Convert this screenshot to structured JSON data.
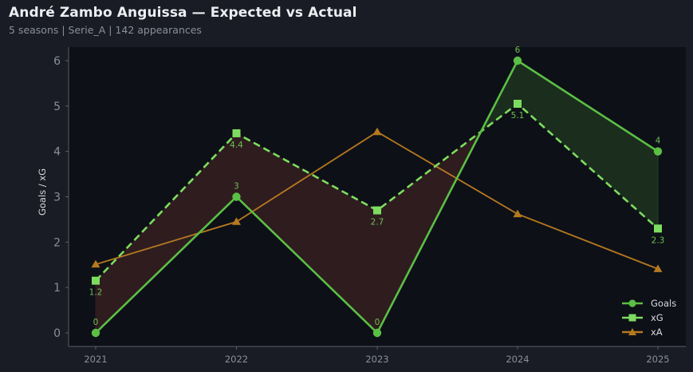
{
  "header": {
    "title": "André Zambo Anguissa — Expected vs Actual",
    "subtitle": "5 seasons | Serie_A | 142 appearances"
  },
  "colors": {
    "background": "#191c24",
    "plot_background": "#0d1017",
    "axis": "#5a5e68",
    "tick_text": "#8b8f98",
    "goals": "#5bbf45",
    "xg": "#7ddc5f",
    "xa": "#b5791f",
    "fill_under": "#2e1c1f",
    "fill_over": "#1b2d1d",
    "label_text": "#6fbf53"
  },
  "chart_data": {
    "type": "line",
    "title": "André Zambo Anguissa — Expected vs Actual",
    "subtitle": "5 seasons | Serie_A | 142 appearances",
    "xlabel": "",
    "ylabel": "Goals / xG",
    "categories": [
      "2021",
      "2022",
      "2023",
      "2024",
      "2025"
    ],
    "yticks": [
      0,
      1,
      2,
      3,
      4,
      5,
      6
    ],
    "ylim": [
      -0.3,
      6.3
    ],
    "grid": false,
    "legend_position": "lower right",
    "series": [
      {
        "name": "Goals",
        "values": [
          0,
          3,
          0,
          6,
          4
        ],
        "labels": [
          "0",
          "3",
          "0",
          "6",
          "4"
        ],
        "marker": "circle",
        "linestyle": "solid"
      },
      {
        "name": "xG",
        "values": [
          1.15,
          4.4,
          2.7,
          5.05,
          2.3
        ],
        "labels": [
          "1.2",
          "4.4",
          "2.7",
          "5.1",
          "2.3"
        ],
        "marker": "square",
        "linestyle": "dashed"
      },
      {
        "name": "xA",
        "values": [
          1.51,
          2.45,
          4.43,
          2.62,
          1.41
        ],
        "marker": "triangle",
        "linestyle": "solid"
      }
    ],
    "fills": [
      {
        "between": [
          "Goals",
          "xG"
        ],
        "where": "Goals < xG",
        "color": "#2e1c1f"
      },
      {
        "between": [
          "Goals",
          "xG"
        ],
        "where": "Goals >= xG",
        "color": "#1b2d1d"
      }
    ]
  },
  "legend": {
    "items": [
      {
        "label": "Goals",
        "marker": "circle"
      },
      {
        "label": "xG",
        "marker": "square"
      },
      {
        "label": "xA",
        "marker": "triangle"
      }
    ]
  }
}
